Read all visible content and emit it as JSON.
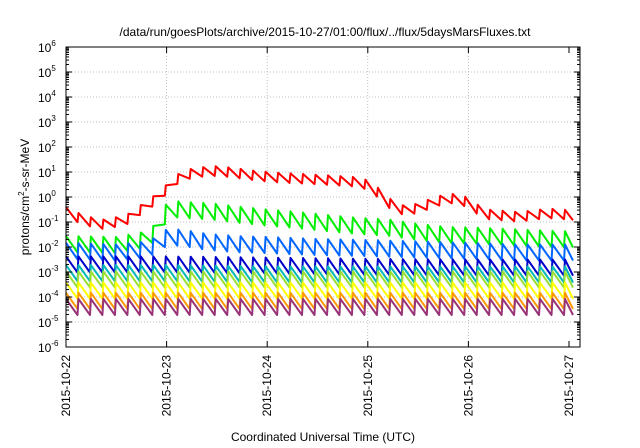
{
  "chart_data": {
    "type": "line",
    "title": "/data/run/goesPlots/archive/2015-10-27/01:00/flux/../flux/5daysMarsFluxes.txt",
    "xlabel": "Coordinated Universal Time (UTC)",
    "ylabel_parts": [
      "protons/cm",
      "2",
      "-s-sr-MeV"
    ],
    "yscale": "log",
    "ylim": [
      1e-06,
      1000000.0
    ],
    "ytick_labels": [
      {
        "base": "10",
        "exp": "-6"
      },
      {
        "base": "10",
        "exp": "-5"
      },
      {
        "base": "10",
        "exp": "-4"
      },
      {
        "base": "10",
        "exp": "-3"
      },
      {
        "base": "10",
        "exp": "-2"
      },
      {
        "base": "10",
        "exp": "-1"
      },
      {
        "base": "10",
        "exp": "0"
      },
      {
        "base": "10",
        "exp": "1"
      },
      {
        "base": "10",
        "exp": "2"
      },
      {
        "base": "10",
        "exp": "3"
      },
      {
        "base": "10",
        "exp": "4"
      },
      {
        "base": "10",
        "exp": "5"
      },
      {
        "base": "10",
        "exp": "6"
      }
    ],
    "xlim": [
      "2015-10-22T00:00",
      "2015-10-27T01:00"
    ],
    "xtick_labels": [
      "2015-10-22",
      "2015-10-23",
      "2015-10-24",
      "2015-10-25",
      "2015-10-26",
      "2015-10-27"
    ],
    "grid": true,
    "series": [
      {
        "color": "#ff0000",
        "x": [
          0,
          0.12,
          0.25,
          0.38,
          0.5,
          0.55,
          0.6,
          0.7,
          0.8,
          0.9,
          1.0,
          1.1,
          1.2,
          1.35,
          1.5,
          1.7,
          1.9,
          2.1,
          2.3,
          2.5,
          2.7,
          2.9,
          3.0,
          3.1,
          3.2,
          3.35,
          3.5,
          3.65,
          3.8,
          3.9,
          4.0,
          4.1,
          4.2,
          4.35,
          4.5,
          4.65,
          4.8,
          4.9,
          5.0,
          5.04
        ],
        "y": [
          0.25,
          0.15,
          0.1,
          0.08,
          0.1,
          0.15,
          0.12,
          0.25,
          0.4,
          0.9,
          2.0,
          5.0,
          8.0,
          10.0,
          11.0,
          9.0,
          7.0,
          6.0,
          5.5,
          5.0,
          4.5,
          4.0,
          3.0,
          1.5,
          0.6,
          0.3,
          0.35,
          0.6,
          0.9,
          0.8,
          0.6,
          0.3,
          0.2,
          0.18,
          0.16,
          0.19,
          0.22,
          0.21,
          0.19,
          0.18
        ]
      },
      {
        "color": "#00ee00",
        "x": [
          0,
          0.5,
          0.8,
          0.95,
          1.0,
          1.1,
          1.2,
          1.35,
          1.5,
          1.7,
          2.0,
          2.3,
          2.6,
          2.9,
          3.2,
          3.5,
          3.8,
          4.1,
          4.4,
          4.7,
          5.04
        ],
        "y": [
          0.013,
          0.012,
          0.02,
          0.06,
          0.3,
          0.32,
          0.3,
          0.28,
          0.25,
          0.2,
          0.15,
          0.12,
          0.09,
          0.07,
          0.06,
          0.04,
          0.03,
          0.028,
          0.025,
          0.022,
          0.02
        ]
      },
      {
        "color": "#0066ff",
        "x": [
          0,
          0.5,
          0.8,
          0.95,
          1.0,
          1.1,
          1.2,
          1.4,
          1.7,
          2.0,
          2.5,
          3.0,
          3.5,
          4.0,
          4.5,
          5.04
        ],
        "y": [
          0.007,
          0.006,
          0.008,
          0.015,
          0.025,
          0.024,
          0.022,
          0.016,
          0.013,
          0.012,
          0.01,
          0.009,
          0.008,
          0.007,
          0.006,
          0.006
        ]
      },
      {
        "color": "#0000cc",
        "x": [
          0,
          1.0,
          2.0,
          3.0,
          4.0,
          5.04
        ],
        "y": [
          0.002,
          0.002,
          0.0018,
          0.0016,
          0.0015,
          0.0015
        ]
      },
      {
        "color": "#00b8b8",
        "x": [
          0,
          1.0,
          2.0,
          3.0,
          4.0,
          5.04
        ],
        "y": [
          0.0009,
          0.0009,
          0.0008,
          0.0008,
          0.0008,
          0.0008
        ]
      },
      {
        "color": "#99e033",
        "x": [
          0,
          1.0,
          2.0,
          3.0,
          4.0,
          5.04
        ],
        "y": [
          0.0005,
          0.0005,
          0.0005,
          0.0005,
          0.0005,
          0.0005
        ]
      },
      {
        "color": "#ffff00",
        "x": [
          0,
          1.0,
          2.0,
          3.0,
          4.0,
          5.04
        ],
        "y": [
          0.00018,
          0.00018,
          0.00018,
          0.00018,
          0.00018,
          0.00018
        ]
      },
      {
        "color": "#ff9900",
        "x": [
          0,
          1.0,
          2.0,
          3.0,
          4.0,
          5.04
        ],
        "y": [
          7e-05,
          7e-05,
          7e-05,
          7e-05,
          7e-05,
          7e-05
        ]
      },
      {
        "color": "#993377",
        "x": [
          0,
          1.0,
          2.0,
          3.0,
          4.0,
          5.04
        ],
        "y": [
          4e-05,
          4e-05,
          4e-05,
          4e-05,
          4e-05,
          4e-05
        ]
      }
    ]
  }
}
